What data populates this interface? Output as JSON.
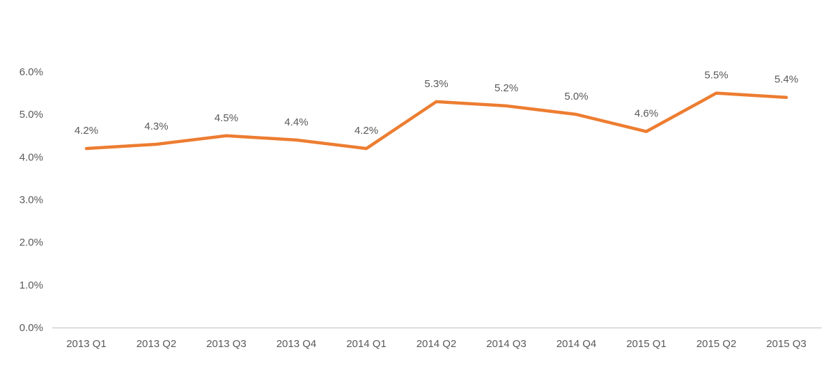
{
  "chart_data": {
    "type": "line",
    "title": "",
    "xlabel": "",
    "ylabel": "",
    "categories": [
      "2013 Q1",
      "2013 Q2",
      "2013 Q3",
      "2013 Q4",
      "2014 Q1",
      "2014 Q2",
      "2014 Q3",
      "2014 Q4",
      "2015 Q1",
      "2015 Q2",
      "2015 Q3"
    ],
    "values": [
      4.2,
      4.3,
      4.5,
      4.4,
      4.2,
      5.3,
      5.2,
      5.0,
      4.6,
      5.5,
      5.4
    ],
    "data_labels": [
      "4.2%",
      "4.3%",
      "4.5%",
      "4.4%",
      "4.2%",
      "5.3%",
      "5.2%",
      "5.0%",
      "4.6%",
      "5.5%",
      "5.4%"
    ],
    "ylim": [
      0,
      6
    ],
    "ytick_step": 1,
    "ytick_labels": [
      "0.0%",
      "1.0%",
      "2.0%",
      "3.0%",
      "4.0%",
      "5.0%",
      "6.0%"
    ],
    "grid": false,
    "legend_position": "none",
    "colors": {
      "series_line": "#ED7D31",
      "text": "#595959",
      "axis_line": "#BFBFBF",
      "background": "#FFFFFF"
    }
  }
}
